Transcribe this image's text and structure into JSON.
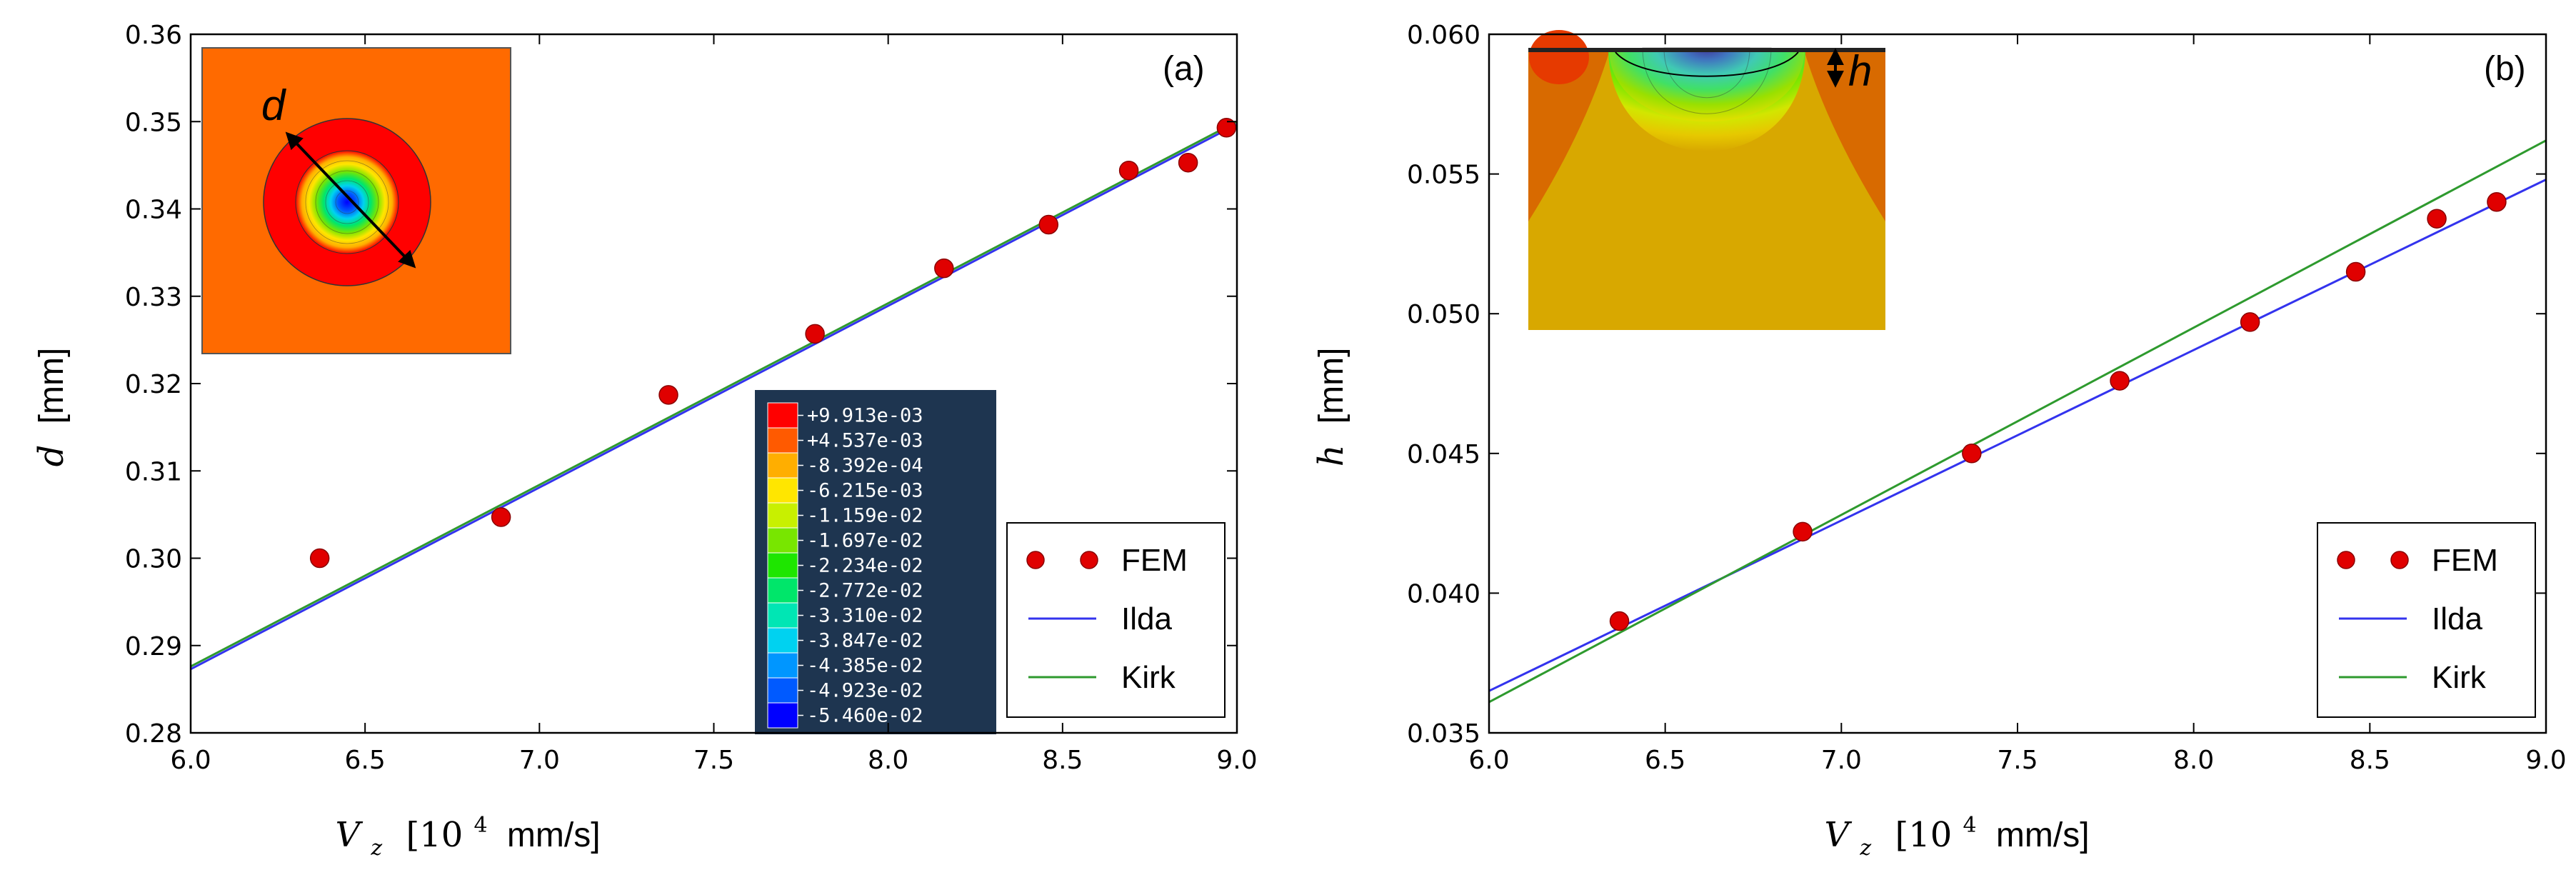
{
  "figure": {
    "panels": [
      {
        "tag": "(a)",
        "ylabel_symbol": "d",
        "ylabel_unit": "[mm]",
        "xlabel_symbol": "V",
        "xlabel_sub": "z",
        "xlabel_unit_pre": "[10",
        "xlabel_unit_exp": "4",
        "xlabel_unit_post": "mm/s]",
        "inset_label": "d"
      },
      {
        "tag": "(b)",
        "ylabel_symbol": "h",
        "ylabel_unit": "[mm]",
        "xlabel_symbol": "V",
        "xlabel_sub": "z",
        "xlabel_unit_pre": "[10",
        "xlabel_unit_exp": "4",
        "xlabel_unit_post": "mm/s]",
        "inset_label": "h"
      }
    ],
    "colorbar": {
      "labels": [
        "+9.913e-03",
        "+4.537e-03",
        "-8.392e-04",
        "-6.215e-03",
        "-1.159e-02",
        "-1.697e-02",
        "-2.234e-02",
        "-2.772e-02",
        "-3.310e-02",
        "-3.847e-02",
        "-4.385e-02",
        "-4.923e-02",
        "-5.460e-02"
      ],
      "colors": [
        "#ff0000",
        "#ff5a00",
        "#ffae00",
        "#ffe600",
        "#c8f000",
        "#78e600",
        "#1ee600",
        "#00e66a",
        "#00e6b4",
        "#00d2f0",
        "#0096ff",
        "#005aff",
        "#0000ff"
      ]
    }
  },
  "chart_data": [
    {
      "type": "scatter",
      "title": "",
      "xlabel": "V_z [10^4 mm/s]",
      "ylabel": "d [mm]",
      "xlim": [
        6.0,
        9.0
      ],
      "ylim": [
        0.28,
        0.36
      ],
      "xticks": [
        "6.0",
        "6.5",
        "7.0",
        "7.5",
        "8.0",
        "8.5",
        "9.0"
      ],
      "yticks": [
        "0.28",
        "0.29",
        "0.30",
        "0.31",
        "0.32",
        "0.33",
        "0.34",
        "0.35",
        "0.36"
      ],
      "grid": false,
      "legend": "bottom-right",
      "series": [
        {
          "name": "FEM",
          "kind": "markers",
          "color": "#e00000",
          "x": [
            6.37,
            6.89,
            7.37,
            7.79,
            8.16,
            8.46,
            8.69,
            8.86,
            8.97
          ],
          "y": [
            0.3,
            0.3047,
            0.3187,
            0.3257,
            0.3332,
            0.3382,
            0.3444,
            0.3453,
            0.3493
          ]
        },
        {
          "name": "Ilda",
          "kind": "line",
          "color": "#3333ee",
          "x": [
            6.0,
            9.0
          ],
          "y": [
            0.2873,
            0.3497
          ]
        },
        {
          "name": "Kirk",
          "kind": "line",
          "color": "#2e9a2e",
          "x": [
            6.0,
            9.0
          ],
          "y": [
            0.2876,
            0.35
          ]
        }
      ]
    },
    {
      "type": "scatter",
      "title": "",
      "xlabel": "V_z [10^4 mm/s]",
      "ylabel": "h [mm]",
      "xlim": [
        6.0,
        9.0
      ],
      "ylim": [
        0.035,
        0.06
      ],
      "xticks": [
        "6.0",
        "6.5",
        "7.0",
        "7.5",
        "8.0",
        "8.5",
        "9.0"
      ],
      "yticks": [
        "0.035",
        "0.040",
        "0.045",
        "0.050",
        "0.055",
        "0.060"
      ],
      "grid": false,
      "legend": "bottom-right",
      "series": [
        {
          "name": "FEM",
          "kind": "markers",
          "color": "#e00000",
          "x": [
            6.37,
            6.89,
            7.37,
            7.79,
            8.16,
            8.46,
            8.69,
            8.86
          ],
          "y": [
            0.039,
            0.0422,
            0.045,
            0.0476,
            0.0497,
            0.0515,
            0.0534,
            0.054
          ]
        },
        {
          "name": "Ilda",
          "kind": "line",
          "color": "#3333ee",
          "x": [
            6.0,
            9.0
          ],
          "y": [
            0.0365,
            0.0548
          ]
        },
        {
          "name": "Kirk",
          "kind": "line",
          "color": "#2e9a2e",
          "x": [
            6.0,
            9.0
          ],
          "y": [
            0.0361,
            0.0562
          ]
        }
      ]
    }
  ]
}
